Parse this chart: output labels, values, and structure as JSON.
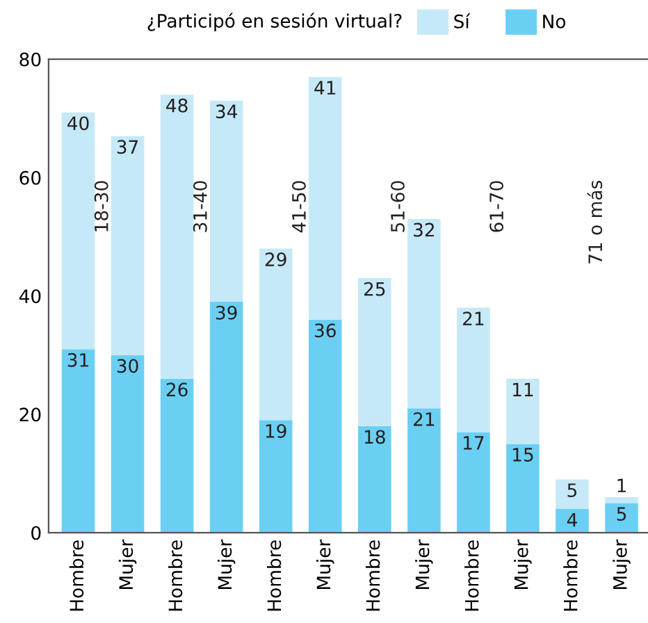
{
  "chart_data": {
    "type": "bar",
    "stacked": true,
    "legend_title": "¿Participó en sesión virtual?",
    "legend": "top",
    "categories": [
      "Hombre",
      "Mujer",
      "Hombre",
      "Mujer",
      "Hombre",
      "Mujer",
      "Hombre",
      "Mujer",
      "Hombre",
      "Mujer",
      "Hombre",
      "Mujer"
    ],
    "series": [
      {
        "name": "No",
        "color": "#6bcff4",
        "values": [
          31,
          30,
          26,
          39,
          19,
          36,
          18,
          21,
          17,
          15,
          4,
          5
        ]
      },
      {
        "name": "Sí",
        "color": "#c6e9f8",
        "values": [
          40,
          37,
          48,
          34,
          29,
          41,
          25,
          32,
          21,
          11,
          5,
          1
        ]
      }
    ],
    "data_labels": true,
    "ylim": [
      0,
      80
    ],
    "yticks": [
      0,
      20,
      40,
      60,
      80
    ],
    "grid": false,
    "annotations": [
      "18-30",
      "31-40",
      "41-50",
      "51-60",
      "61-70",
      "71 o más"
    ]
  }
}
